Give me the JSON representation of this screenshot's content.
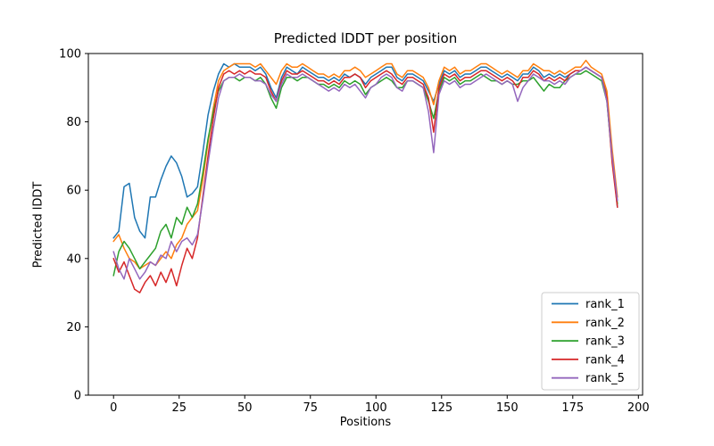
{
  "figure": {
    "title": "Predicted lDDT per position",
    "xlabel": "Positions",
    "ylabel": "Predicted lDDT"
  },
  "chart_data": {
    "type": "line",
    "title": "Predicted lDDT per position",
    "xlabel": "Positions",
    "ylabel": "Predicted lDDT",
    "xlim": [
      -9.6,
      201.6
    ],
    "ylim": [
      0,
      100
    ],
    "x_ticks": [
      0,
      25,
      50,
      75,
      100,
      125,
      150,
      175,
      200
    ],
    "y_ticks": [
      0,
      20,
      40,
      60,
      80,
      100
    ],
    "grid": false,
    "legend_position": "lower right",
    "legend_edge_color": "#cccccc",
    "x_start": 0,
    "x_step": 2,
    "series": [
      {
        "name": "rank_1",
        "color": "#1f77b4",
        "values": [
          46,
          48,
          61,
          62,
          52,
          48,
          46,
          58,
          58,
          63,
          67,
          70,
          68,
          64,
          58,
          59,
          61,
          71,
          82,
          89,
          94,
          97,
          96,
          97,
          96,
          96,
          96,
          95,
          96,
          94,
          90,
          87,
          93,
          96,
          95,
          94,
          96,
          95,
          94,
          93,
          93,
          92,
          93,
          92,
          94,
          93,
          94,
          93,
          91,
          93,
          94,
          95,
          96,
          96,
          93,
          92,
          94,
          94,
          93,
          92,
          89,
          86,
          91,
          95,
          94,
          95,
          93,
          94,
          94,
          95,
          96,
          96,
          95,
          94,
          93,
          94,
          93,
          92,
          94,
          94,
          96,
          95,
          93,
          94,
          93,
          94,
          93,
          94,
          95,
          95,
          96,
          95,
          94,
          93,
          88,
          70,
          55
        ]
      },
      {
        "name": "rank_2",
        "color": "#ff7f0e",
        "values": [
          45,
          47,
          43,
          40,
          39,
          37,
          38,
          39,
          38,
          40,
          42,
          40,
          44,
          46,
          50,
          52,
          54,
          63,
          74,
          84,
          92,
          95,
          96,
          97,
          97,
          97,
          97,
          96,
          97,
          95,
          93,
          91,
          95,
          97,
          96,
          96,
          97,
          96,
          95,
          94,
          94,
          93,
          94,
          93,
          95,
          95,
          96,
          95,
          93,
          94,
          95,
          96,
          97,
          97,
          94,
          93,
          95,
          95,
          94,
          93,
          90,
          85,
          92,
          96,
          95,
          96,
          94,
          95,
          95,
          96,
          97,
          97,
          96,
          95,
          94,
          95,
          94,
          93,
          95,
          95,
          97,
          96,
          95,
          95,
          94,
          95,
          94,
          95,
          96,
          96,
          98,
          96,
          95,
          94,
          89,
          72,
          58
        ]
      },
      {
        "name": "rank_3",
        "color": "#2ca02c",
        "values": [
          35,
          42,
          45,
          43,
          40,
          37,
          39,
          41,
          43,
          48,
          50,
          46,
          52,
          50,
          55,
          52,
          56,
          65,
          75,
          83,
          89,
          92,
          93,
          93,
          92,
          93,
          93,
          92,
          93,
          91,
          87,
          84,
          90,
          93,
          93,
          92,
          93,
          93,
          92,
          91,
          91,
          90,
          91,
          90,
          92,
          91,
          92,
          91,
          88,
          90,
          91,
          92,
          93,
          92,
          90,
          90,
          92,
          92,
          91,
          90,
          86,
          81,
          89,
          93,
          92,
          93,
          91,
          92,
          92,
          93,
          94,
          93,
          92,
          92,
          91,
          92,
          91,
          91,
          92,
          92,
          93,
          91,
          89,
          91,
          90,
          90,
          92,
          93,
          94,
          94,
          95,
          94,
          93,
          92,
          86,
          69,
          56
        ]
      },
      {
        "name": "rank_4",
        "color": "#d62728",
        "values": [
          40,
          36,
          39,
          35,
          31,
          30,
          33,
          35,
          32,
          36,
          33,
          37,
          32,
          38,
          43,
          40,
          46,
          58,
          70,
          81,
          90,
          94,
          95,
          94,
          95,
          94,
          95,
          94,
          94,
          93,
          89,
          86,
          92,
          95,
          94,
          94,
          95,
          94,
          93,
          92,
          92,
          91,
          92,
          91,
          93,
          93,
          94,
          93,
          90,
          92,
          93,
          94,
          95,
          94,
          92,
          91,
          93,
          93,
          92,
          91,
          87,
          77,
          90,
          94,
          93,
          94,
          92,
          93,
          93,
          94,
          95,
          95,
          94,
          93,
          92,
          93,
          92,
          90,
          93,
          93,
          95,
          94,
          92,
          93,
          92,
          93,
          92,
          94,
          95,
          95,
          96,
          95,
          94,
          93,
          87,
          68,
          55
        ]
      },
      {
        "name": "rank_5",
        "color": "#9467bd",
        "values": [
          42,
          37,
          34,
          40,
          37,
          34,
          36,
          39,
          38,
          41,
          40,
          45,
          42,
          45,
          46,
          44,
          47,
          57,
          68,
          78,
          87,
          92,
          93,
          93,
          94,
          93,
          93,
          92,
          92,
          91,
          88,
          86,
          91,
          94,
          93,
          93,
          94,
          93,
          92,
          91,
          90,
          89,
          90,
          89,
          91,
          90,
          91,
          89,
          87,
          90,
          91,
          93,
          94,
          93,
          90,
          89,
          92,
          92,
          91,
          90,
          83,
          71,
          88,
          92,
          91,
          92,
          90,
          91,
          91,
          92,
          93,
          94,
          93,
          92,
          91,
          92,
          91,
          86,
          90,
          92,
          94,
          93,
          92,
          92,
          91,
          92,
          91,
          93,
          94,
          95,
          96,
          95,
          94,
          93,
          86,
          70,
          57
        ]
      }
    ]
  }
}
